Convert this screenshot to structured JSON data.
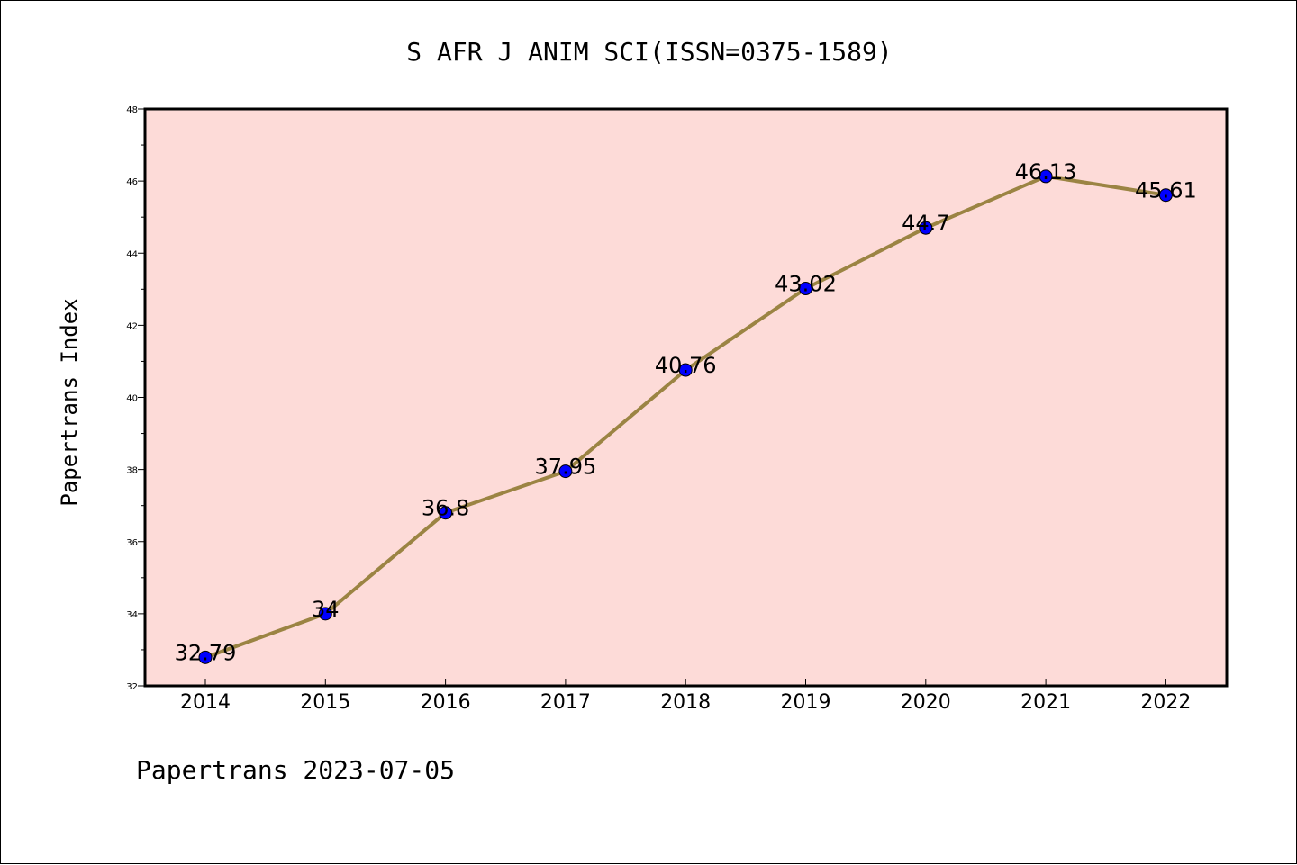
{
  "chart_data": {
    "type": "line",
    "title": "S AFR J ANIM SCI(ISSN=0375-1589)",
    "xlabel": "",
    "ylabel": "Papertrans Index",
    "categories": [
      "2014",
      "2015",
      "2016",
      "2017",
      "2018",
      "2019",
      "2020",
      "2021",
      "2022"
    ],
    "values": [
      32.79,
      34,
      36.8,
      37.95,
      40.76,
      43.02,
      44.7,
      46.13,
      45.61
    ],
    "data_labels": [
      "32.79",
      "34",
      "36.8",
      "37.95",
      "40.76",
      "43.02",
      "44.7",
      "46.13",
      "45.61"
    ],
    "ylim": [
      32,
      48
    ],
    "yticks": [
      32,
      34,
      36,
      38,
      40,
      42,
      44,
      46,
      48
    ],
    "grid": false,
    "legend": "none",
    "colors": {
      "plot_background": "#fddbd8",
      "line": "#9b8443",
      "marker": "#0000ff",
      "axis": "#000000"
    }
  },
  "footer": {
    "text": "Papertrans 2023-07-05"
  }
}
